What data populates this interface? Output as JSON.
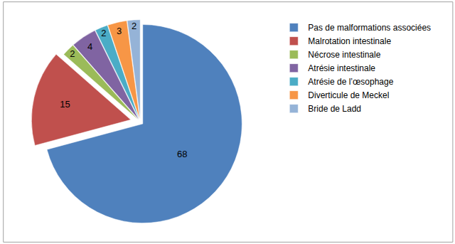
{
  "chart_data": {
    "type": "pie",
    "categories": [
      "Pas de malformations associées",
      "Malrotation intestinale",
      "Nécrose intestinale",
      "Atrésie intestinale",
      "Atrésie de l’œsophage",
      "Diverticule de Meckel",
      "Bride de Ladd"
    ],
    "values": [
      68,
      15,
      2,
      4,
      2,
      3,
      2
    ],
    "colors": [
      "#4f81bd",
      "#c0504d",
      "#9bbb59",
      "#8064a2",
      "#4bacc6",
      "#f79646",
      "#95b3d7"
    ],
    "data_labels": true,
    "legend": "right"
  }
}
